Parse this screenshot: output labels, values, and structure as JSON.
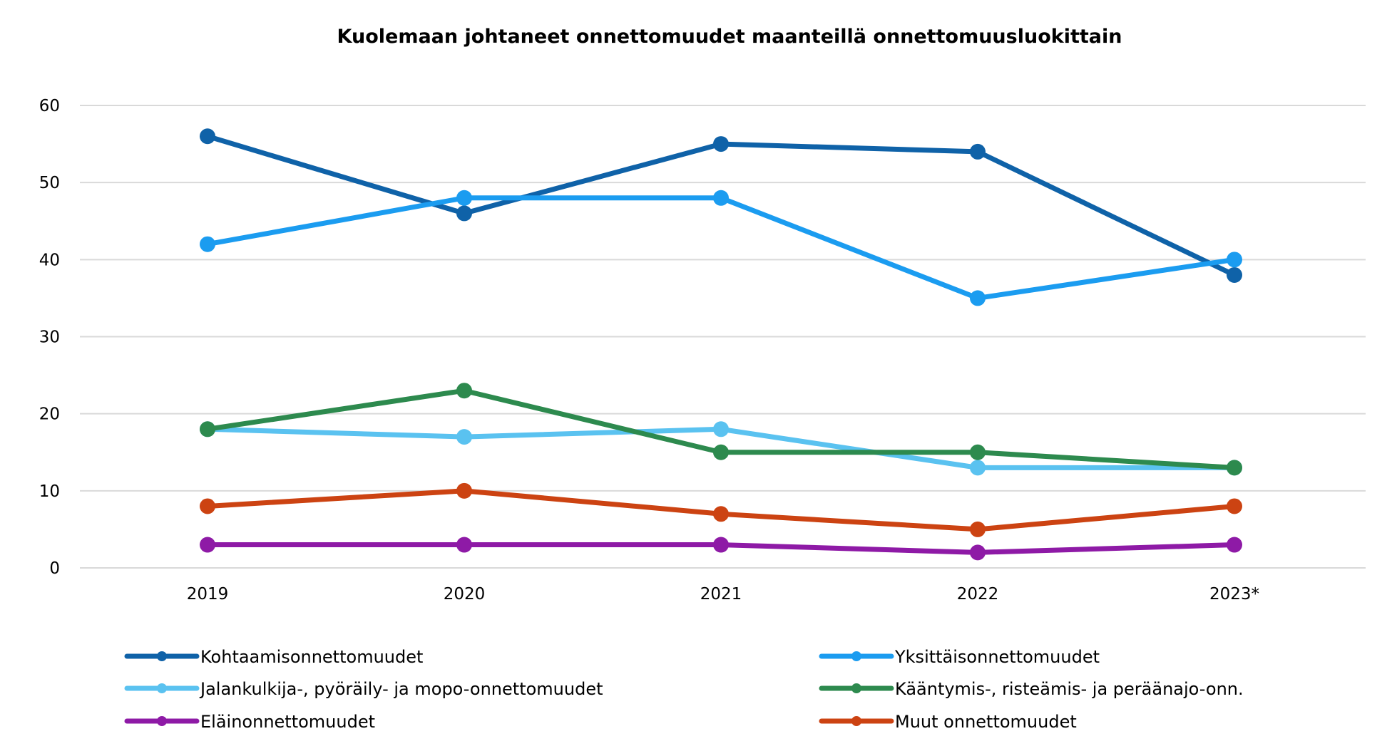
{
  "chart_data": {
    "type": "line",
    "title": "Kuolemaan johtaneet onnettomuudet maanteillä onnettomuusluokittain",
    "xlabel": "",
    "ylabel": "",
    "categories": [
      "2019",
      "2020",
      "2021",
      "2022",
      "2023*"
    ],
    "yticks": [
      "0",
      "10",
      "20",
      "30",
      "40",
      "50",
      "60"
    ],
    "ylim": [
      0,
      60
    ],
    "grid": true,
    "legend_position": "bottom",
    "series": [
      {
        "name": "Kohtaamisonnettomuudet",
        "color": "#0F62A8",
        "values": [
          56,
          46,
          55,
          54,
          38
        ]
      },
      {
        "name": "Yksittäisonnettomuudet",
        "color": "#1B9CF0",
        "values": [
          42,
          48,
          48,
          35,
          40
        ]
      },
      {
        "name": "Jalankulkija-, pyöräily- ja mopo-onnettomuudet",
        "color": "#5AC2F0",
        "values": [
          18,
          17,
          18,
          13,
          13
        ]
      },
      {
        "name": "Kääntymis-, risteämis- ja peräänajo-onn.",
        "color": "#2D8A4E",
        "values": [
          18,
          23,
          15,
          15,
          13
        ]
      },
      {
        "name": "Eläinonnettomuudet",
        "color": "#8E1AA6",
        "values": [
          3,
          3,
          3,
          2,
          3
        ]
      },
      {
        "name": "Muut onnettomuudet",
        "color": "#CC4312",
        "values": [
          8,
          10,
          7,
          5,
          8
        ]
      }
    ]
  }
}
